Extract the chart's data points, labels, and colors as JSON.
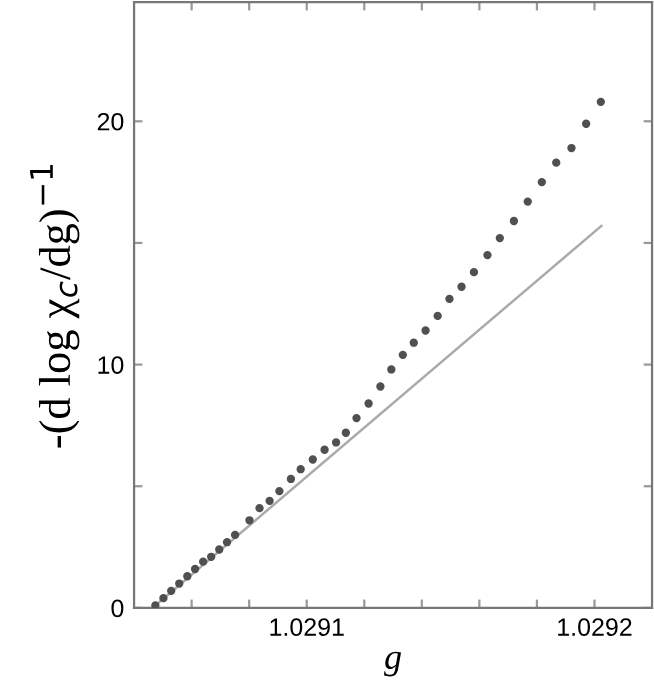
{
  "chart_data": {
    "type": "scatter",
    "xlabel": "g",
    "ylabel": "-(d log χ$_{c}$/dg)$^{−1}$",
    "xlim": [
      1.02904,
      1.02922
    ],
    "ylim": [
      0,
      24.9
    ],
    "xticks": [
      {
        "value": 1.02906,
        "label": null
      },
      {
        "value": 1.02908,
        "label": null
      },
      {
        "value": 1.0291,
        "label": "1.0291"
      },
      {
        "value": 1.02912,
        "label": null
      },
      {
        "value": 1.02914,
        "label": null
      },
      {
        "value": 1.02916,
        "label": null
      },
      {
        "value": 1.02918,
        "label": null
      },
      {
        "value": 1.0292,
        "label": "1.0292"
      }
    ],
    "yticks": [
      0,
      {
        "value": 5,
        "label": null
      },
      10,
      {
        "value": 15,
        "label": null
      },
      20
    ],
    "grid": false,
    "legend": false,
    "marker": "circle",
    "series": [
      {
        "color": "#505050",
        "x": [
          1.0290474,
          1.0290502,
          1.0290529,
          1.0290557,
          1.0290585,
          1.0290612,
          1.029064,
          1.0290668,
          1.0290696,
          1.0290723,
          1.0290751,
          1.0290801,
          1.0290836,
          1.0290871,
          1.0290905,
          1.0290945,
          1.0290979,
          1.0291021,
          1.0291062,
          1.0291102,
          1.0291136,
          1.0291173,
          1.0291215,
          1.0291256,
          1.0291294,
          1.0291334,
          1.0291372,
          1.0291413,
          1.0291455,
          1.0291496,
          1.0291538,
          1.0291581,
          1.0291628,
          1.0291671,
          1.029172,
          1.0291768,
          1.0291817,
          1.0291867,
          1.029192,
          1.0291971,
          1.0292022
        ],
        "values": [
          0.1,
          0.4,
          0.7,
          1.0,
          1.3,
          1.6,
          1.9,
          2.1,
          2.4,
          2.7,
          3.0,
          3.6,
          4.1,
          4.4,
          4.8,
          5.3,
          5.7,
          6.1,
          6.5,
          6.8,
          7.2,
          7.8,
          8.4,
          9.1,
          9.8,
          10.4,
          10.9,
          11.4,
          12.0,
          12.7,
          13.2,
          13.8,
          14.5,
          15.2,
          15.9,
          16.7,
          17.5,
          18.3,
          18.9,
          19.9,
          20.8
        ]
      },
      {
        "type": "line",
        "color": "#aaaaaa",
        "marker": "none",
        "line_style": "solid",
        "x": [
          1.0290474,
          1.0292024
        ],
        "values": [
          0.1,
          15.7
        ]
      }
    ]
  }
}
